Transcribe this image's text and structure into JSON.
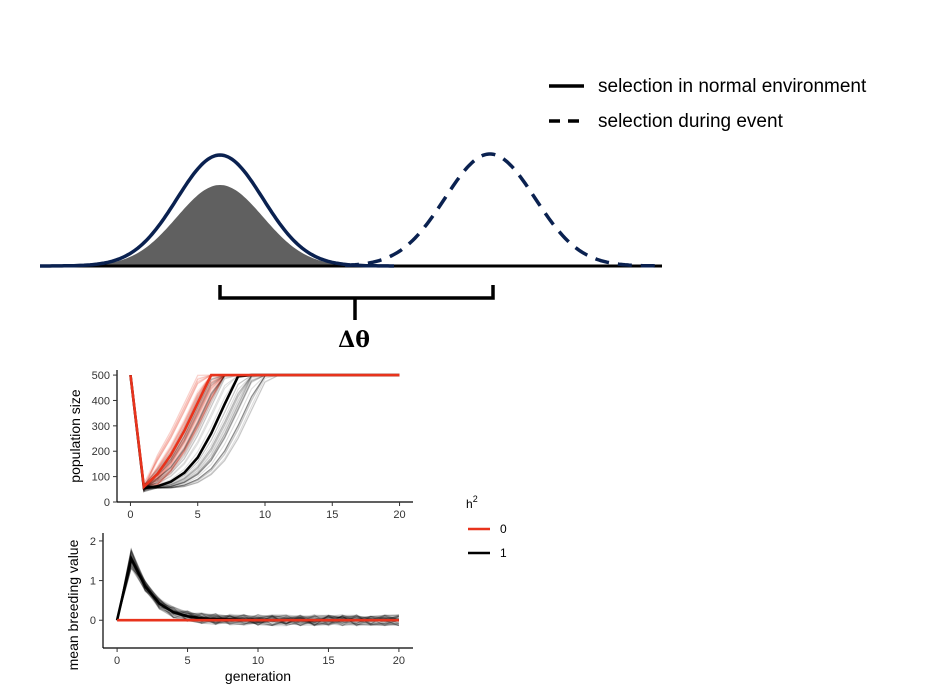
{
  "schematic": {
    "legend": [
      {
        "label": "selection in normal environment",
        "style": "solid"
      },
      {
        "label": "selection during event",
        "style": "dashed"
      }
    ],
    "shift_label": "Δθ",
    "curve_color": "#0a2150",
    "fill_color": "#606060"
  },
  "legend_h2": {
    "title": "h",
    "title_sup": "2",
    "items": [
      {
        "label": "0",
        "color": "#e8331c"
      },
      {
        "label": "1",
        "color": "#000000"
      }
    ]
  },
  "chart_data": [
    {
      "type": "line",
      "ylabel": "population size",
      "xlabel": "",
      "xlim": [
        -1,
        21
      ],
      "ylim": [
        0,
        520
      ],
      "xticks": [
        "0",
        "5",
        "10",
        "15",
        "20"
      ],
      "yticks": [
        "0",
        "100",
        "200",
        "300",
        "400",
        "500"
      ],
      "series": [
        {
          "name": "0",
          "color": "#e8331c",
          "x": [
            0,
            1,
            2,
            3,
            4,
            5,
            6,
            7,
            8,
            9,
            10,
            11,
            12,
            13,
            14,
            15,
            16,
            17,
            18,
            19,
            20
          ],
          "values": [
            500,
            60,
            110,
            185,
            280,
            390,
            500,
            500,
            500,
            500,
            500,
            500,
            500,
            500,
            500,
            500,
            500,
            500,
            500,
            500,
            500
          ]
        },
        {
          "name": "1",
          "color": "#000000",
          "x": [
            0,
            1,
            2,
            3,
            4,
            5,
            6,
            7,
            8,
            9,
            10,
            11,
            12,
            13,
            14,
            15,
            16,
            17,
            18,
            19,
            20
          ],
          "values": [
            500,
            55,
            62,
            80,
            115,
            175,
            270,
            385,
            495,
            500,
            500,
            500,
            500,
            500,
            500,
            500,
            500,
            500,
            500,
            500,
            500
          ]
        }
      ]
    },
    {
      "type": "line",
      "ylabel": "mean breeding value",
      "xlabel": "generation",
      "xlim": [
        -1,
        21
      ],
      "ylim": [
        -0.7,
        2.2
      ],
      "xticks": [
        "0",
        "5",
        "10",
        "15",
        "20"
      ],
      "yticks": [
        "0",
        "1",
        "2"
      ],
      "series": [
        {
          "name": "0",
          "color": "#e8331c",
          "x": [
            0,
            1,
            2,
            3,
            4,
            5,
            6,
            7,
            8,
            9,
            10,
            11,
            12,
            13,
            14,
            15,
            16,
            17,
            18,
            19,
            20
          ],
          "values": [
            0,
            0,
            0,
            0,
            0,
            0,
            0,
            0,
            0,
            0,
            0,
            0,
            0,
            0,
            0,
            0,
            0,
            0,
            0,
            0,
            0
          ]
        },
        {
          "name": "1",
          "color": "#000000",
          "x": [
            0,
            1,
            2,
            3,
            4,
            5,
            6,
            7,
            8,
            9,
            10,
            11,
            12,
            13,
            14,
            15,
            16,
            17,
            18,
            19,
            20
          ],
          "values": [
            0,
            1.55,
            0.85,
            0.42,
            0.2,
            0.1,
            0.05,
            0.03,
            0.02,
            0.01,
            0.01,
            0,
            0,
            0,
            0,
            0,
            0,
            0,
            0,
            0,
            0
          ]
        }
      ]
    }
  ]
}
